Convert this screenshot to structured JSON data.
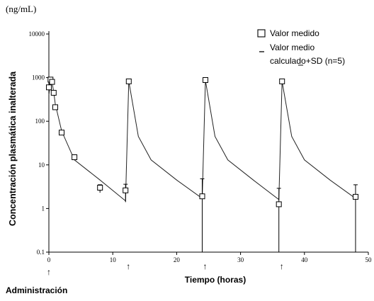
{
  "chart_data": {
    "type": "scatter",
    "unit_label": "(ng/mL)",
    "ylabel": "Concentración plasmática inalterada",
    "xlabel": "Tiempo (horas)",
    "footnote": "Administración",
    "xlim": [
      0,
      50
    ],
    "ylim": [
      0.1,
      10000
    ],
    "yscale": "log",
    "x_ticks": [
      0,
      10,
      20,
      30,
      40,
      50
    ],
    "x_tick_labels": [
      "0",
      "10",
      "20",
      "30",
      "40",
      "50"
    ],
    "y_ticks": [
      0.1,
      1,
      10,
      100,
      1000,
      10000
    ],
    "y_tick_labels": [
      "0.1",
      "1",
      "10",
      "100",
      "1000",
      "10000"
    ],
    "dose_times": [
      0,
      12,
      24,
      36
    ],
    "dose_marker": "↑",
    "legend": {
      "placement": "top-right",
      "entries": [
        {
          "symbol": "square",
          "label": "Valor medido"
        },
        {
          "symbol": "dash",
          "label": "Valor medio"
        },
        {
          "symbol": "none",
          "label": "calculado+SD (n=5)"
        }
      ]
    },
    "series": [
      {
        "kind": "measured",
        "marker": "square",
        "x": [
          0.0,
          0.25,
          0.5,
          0.75,
          1.0,
          2.0,
          4.0,
          8.0,
          12.0,
          12.5,
          24.0,
          24.5,
          36.0,
          36.5,
          48.0
        ],
        "y": [
          600,
          900,
          800,
          450,
          210,
          55,
          15,
          3.0,
          2.6,
          820,
          1.9,
          880,
          1.25,
          820,
          1.85
        ]
      },
      {
        "kind": "mean_calculated",
        "marker": "line",
        "x": [
          0.0,
          0.25,
          0.5,
          0.75,
          1.0,
          2.0,
          4.0,
          8.0,
          12.0,
          12.5,
          14.0,
          16.0,
          20.0,
          24.0,
          24.5,
          26.0,
          28.0,
          32.0,
          36.0,
          36.5,
          38.0,
          40.0,
          44.0,
          48.0
        ],
        "y": [
          400,
          800,
          780,
          470,
          250,
          60,
          13,
          4.5,
          1.5,
          830,
          45,
          13,
          4.5,
          1.7,
          860,
          45,
          13,
          4.5,
          1.6,
          820,
          45,
          13,
          4.5,
          1.7
        ]
      }
    ],
    "error_bars": [
      {
        "x": 8.0,
        "low": 2.3,
        "high": 3.5
      },
      {
        "x": 12.0,
        "low": 1.4,
        "high": 3.6
      },
      {
        "x": 24.0,
        "low": 0.1,
        "high": 4.8
      },
      {
        "x": 36.0,
        "low": 0.1,
        "high": 2.9
      },
      {
        "x": 48.0,
        "low": 0.1,
        "high": 3.5
      }
    ]
  }
}
